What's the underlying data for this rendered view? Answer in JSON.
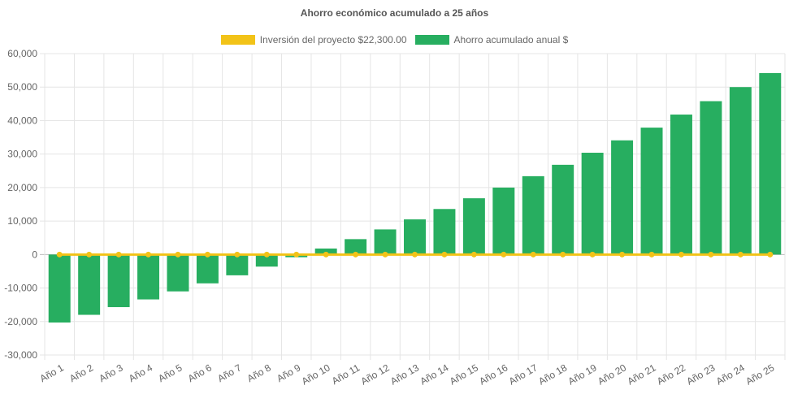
{
  "chart_data": {
    "type": "bar",
    "title": "Ahorro económico acumulado a 25 años",
    "xlabel": "",
    "ylabel": "",
    "ylim": [
      -30000,
      60000
    ],
    "ytick_step": 10000,
    "ytick_labels": [
      "60,000",
      "50,000",
      "40,000",
      "30,000",
      "20,000",
      "10,000",
      "0",
      "-10,000",
      "-20,000",
      "-30,000"
    ],
    "categories": [
      "Año 1",
      "Año 2",
      "Año 3",
      "Año 4",
      "Año 5",
      "Año 6",
      "Año 7",
      "Año 8",
      "Año 9",
      "Año 10",
      "Año 11",
      "Año 12",
      "Año 13",
      "Año 14",
      "Año 15",
      "Año 16",
      "Año 17",
      "Año 18",
      "Año 19",
      "Año 20",
      "Año 21",
      "Año 22",
      "Año 23",
      "Año 24",
      "Año 25"
    ],
    "series": [
      {
        "name": "Inversión del proyecto $22,300.00",
        "type": "line",
        "color": "#f2c318",
        "values": [
          0,
          0,
          0,
          0,
          0,
          0,
          0,
          0,
          0,
          0,
          0,
          0,
          0,
          0,
          0,
          0,
          0,
          0,
          0,
          0,
          0,
          0,
          0,
          0,
          0
        ]
      },
      {
        "name": "Ahorro acumulado anual $",
        "type": "bar",
        "color": "#27ae60",
        "values": [
          -20300,
          -18000,
          -15700,
          -13400,
          -11000,
          -8600,
          -6200,
          -3600,
          -800,
          1800,
          4600,
          7500,
          10500,
          13600,
          16800,
          20000,
          23400,
          26800,
          30400,
          34100,
          37900,
          41800,
          45800,
          50000,
          54200
        ]
      }
    ]
  }
}
